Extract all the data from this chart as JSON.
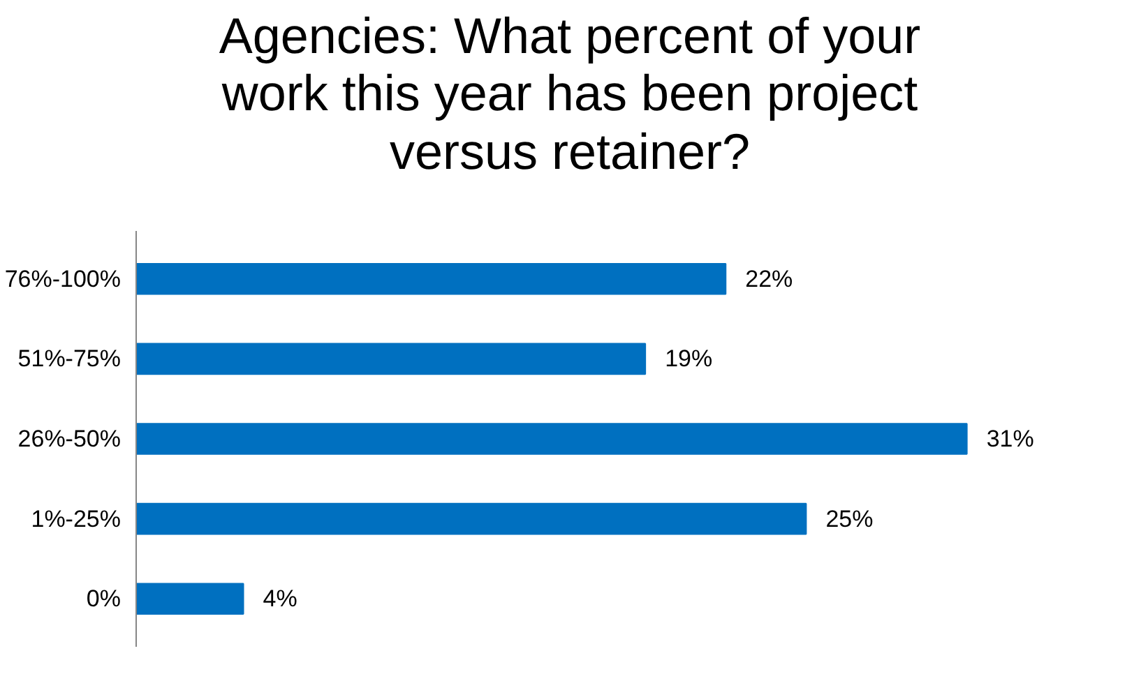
{
  "chart_data": {
    "type": "bar",
    "orientation": "horizontal",
    "title": "Agencies: What percent of your work this year has been project versus retainer?",
    "categories": [
      "76%-100%",
      "51%-75%",
      "26%-50%",
      "1%-25%",
      "0%"
    ],
    "values": [
      22,
      19,
      31,
      25,
      4
    ],
    "value_labels": [
      "22%",
      "19%",
      "31%",
      "25%",
      "4%"
    ],
    "color": "#0070c0",
    "grid": false
  }
}
